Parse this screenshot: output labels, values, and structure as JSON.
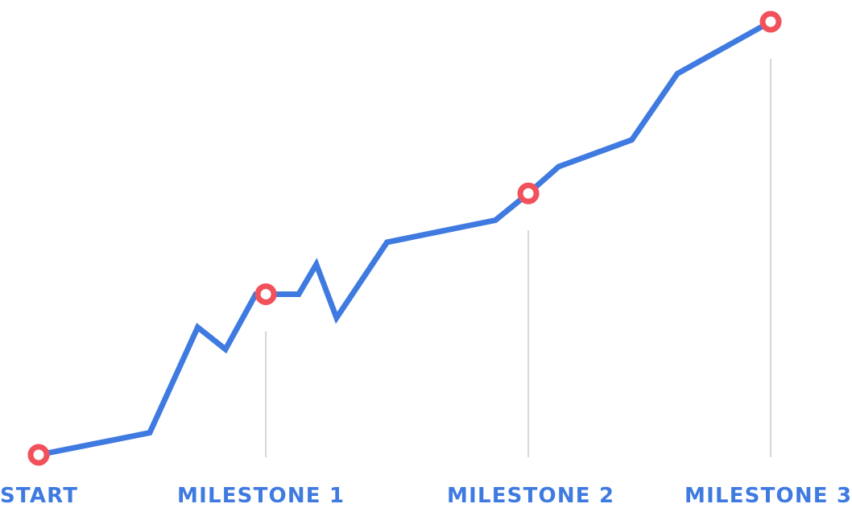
{
  "chart_data": {
    "type": "line",
    "title": "",
    "xlabel": "",
    "ylabel": "",
    "grid": false,
    "legend": "none",
    "series": [
      {
        "values": [
          [
            0,
            0.0
          ],
          [
            4.4,
            7.0
          ],
          [
            6.3,
            40.5
          ],
          [
            7.4,
            33.5
          ],
          [
            8.6,
            51.0
          ],
          [
            10.3,
            51.0
          ],
          [
            11.0,
            60.5
          ],
          [
            11.8,
            43.5
          ],
          [
            13.8,
            67.5
          ],
          [
            18.1,
            74.5
          ],
          [
            19.4,
            83.0
          ],
          [
            20.6,
            91.5
          ],
          [
            23.5,
            100.0
          ],
          [
            25.3,
            121.0
          ],
          [
            29.0,
            137.5
          ]
        ]
      }
    ],
    "milestones": [
      {
        "label": "START",
        "x": 0,
        "y": 0.0,
        "line": false
      },
      {
        "label": "MILESTONE 1",
        "x": 9.0,
        "y": 51.0,
        "line": true
      },
      {
        "label": "MILESTONE 2",
        "x": 19.4,
        "y": 83.0,
        "line": true
      },
      {
        "label": "MILESTONE 3",
        "x": 29.0,
        "y": 137.5,
        "line": true
      }
    ],
    "xlim": [
      0,
      29
    ],
    "ylim": [
      0,
      137.5
    ]
  },
  "colors": {
    "line": "#3f7ae0",
    "marker": "#f2505a",
    "marker_fill": "#ffffff",
    "guide": "#d6d6d6",
    "label": "#3f7ae0"
  }
}
